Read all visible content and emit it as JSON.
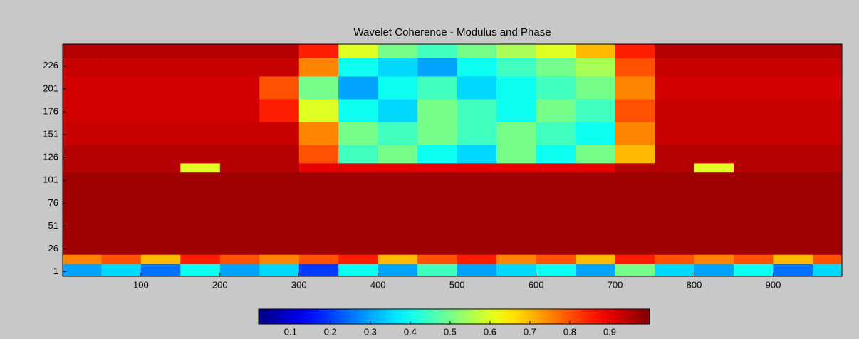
{
  "chart_data": {
    "type": "heatmap",
    "title": "Wavelet Coherence - Modulus and Phase",
    "colormap": "jet",
    "x_edges": [
      1,
      50,
      100,
      150,
      200,
      250,
      300,
      350,
      400,
      450,
      500,
      550,
      600,
      650,
      700,
      750,
      800,
      850,
      900,
      950,
      987
    ],
    "y_edges": [
      -4,
      10,
      20,
      110,
      120,
      140,
      165,
      190,
      215,
      235,
      250
    ],
    "z": [
      [
        0.3,
        0.35,
        0.25,
        0.4,
        0.3,
        0.35,
        0.2,
        0.4,
        0.3,
        0.45,
        0.3,
        0.35,
        0.4,
        0.3,
        0.5,
        0.35,
        0.3,
        0.4,
        0.25,
        0.35
      ],
      [
        0.75,
        0.8,
        0.7,
        0.85,
        0.8,
        0.75,
        0.8,
        0.85,
        0.7,
        0.8,
        0.85,
        0.75,
        0.8,
        0.7,
        0.85,
        0.8,
        0.75,
        0.8,
        0.7,
        0.8
      ],
      [
        0.97,
        0.97,
        0.97,
        0.97,
        0.97,
        0.97,
        0.97,
        0.97,
        0.97,
        0.97,
        0.97,
        0.97,
        0.97,
        0.97,
        0.97,
        0.97,
        0.97,
        0.97,
        0.97,
        0.97
      ],
      [
        0.95,
        0.95,
        0.95,
        0.6,
        0.95,
        0.95,
        0.9,
        0.9,
        0.9,
        0.9,
        0.9,
        0.9,
        0.9,
        0.9,
        0.95,
        0.95,
        0.6,
        0.95,
        0.95,
        0.95
      ],
      [
        0.95,
        0.95,
        0.95,
        0.95,
        0.95,
        0.95,
        0.8,
        0.45,
        0.5,
        0.4,
        0.35,
        0.5,
        0.4,
        0.5,
        0.7,
        0.95,
        0.95,
        0.95,
        0.95,
        0.95
      ],
      [
        0.93,
        0.93,
        0.93,
        0.93,
        0.93,
        0.93,
        0.75,
        0.5,
        0.45,
        0.5,
        0.45,
        0.5,
        0.45,
        0.4,
        0.75,
        0.93,
        0.93,
        0.93,
        0.93,
        0.93
      ],
      [
        0.92,
        0.92,
        0.92,
        0.92,
        0.92,
        0.85,
        0.6,
        0.4,
        0.35,
        0.5,
        0.45,
        0.4,
        0.5,
        0.45,
        0.8,
        0.93,
        0.93,
        0.93,
        0.93,
        0.93
      ],
      [
        0.92,
        0.92,
        0.92,
        0.92,
        0.92,
        0.8,
        0.5,
        0.3,
        0.4,
        0.45,
        0.35,
        0.4,
        0.45,
        0.5,
        0.75,
        0.92,
        0.92,
        0.92,
        0.92,
        0.92
      ],
      [
        0.93,
        0.93,
        0.93,
        0.93,
        0.93,
        0.93,
        0.75,
        0.4,
        0.35,
        0.3,
        0.4,
        0.45,
        0.5,
        0.55,
        0.8,
        0.93,
        0.93,
        0.93,
        0.93,
        0.93
      ],
      [
        0.95,
        0.95,
        0.95,
        0.95,
        0.95,
        0.95,
        0.85,
        0.6,
        0.5,
        0.45,
        0.5,
        0.55,
        0.6,
        0.7,
        0.85,
        0.95,
        0.95,
        0.95,
        0.95,
        0.95
      ]
    ],
    "xlim": [
      1,
      987
    ],
    "ylim": [
      -4,
      250
    ],
    "xticks": [
      100,
      200,
      300,
      400,
      500,
      600,
      700,
      800,
      900
    ],
    "yticks": [
      1,
      26,
      51,
      76,
      101,
      126,
      151,
      176,
      201,
      226
    ],
    "clim": [
      0.02,
      1.0
    ],
    "cticks": [
      0.1,
      0.2,
      0.3,
      0.4,
      0.5,
      0.6,
      0.7,
      0.8,
      0.9
    ]
  }
}
